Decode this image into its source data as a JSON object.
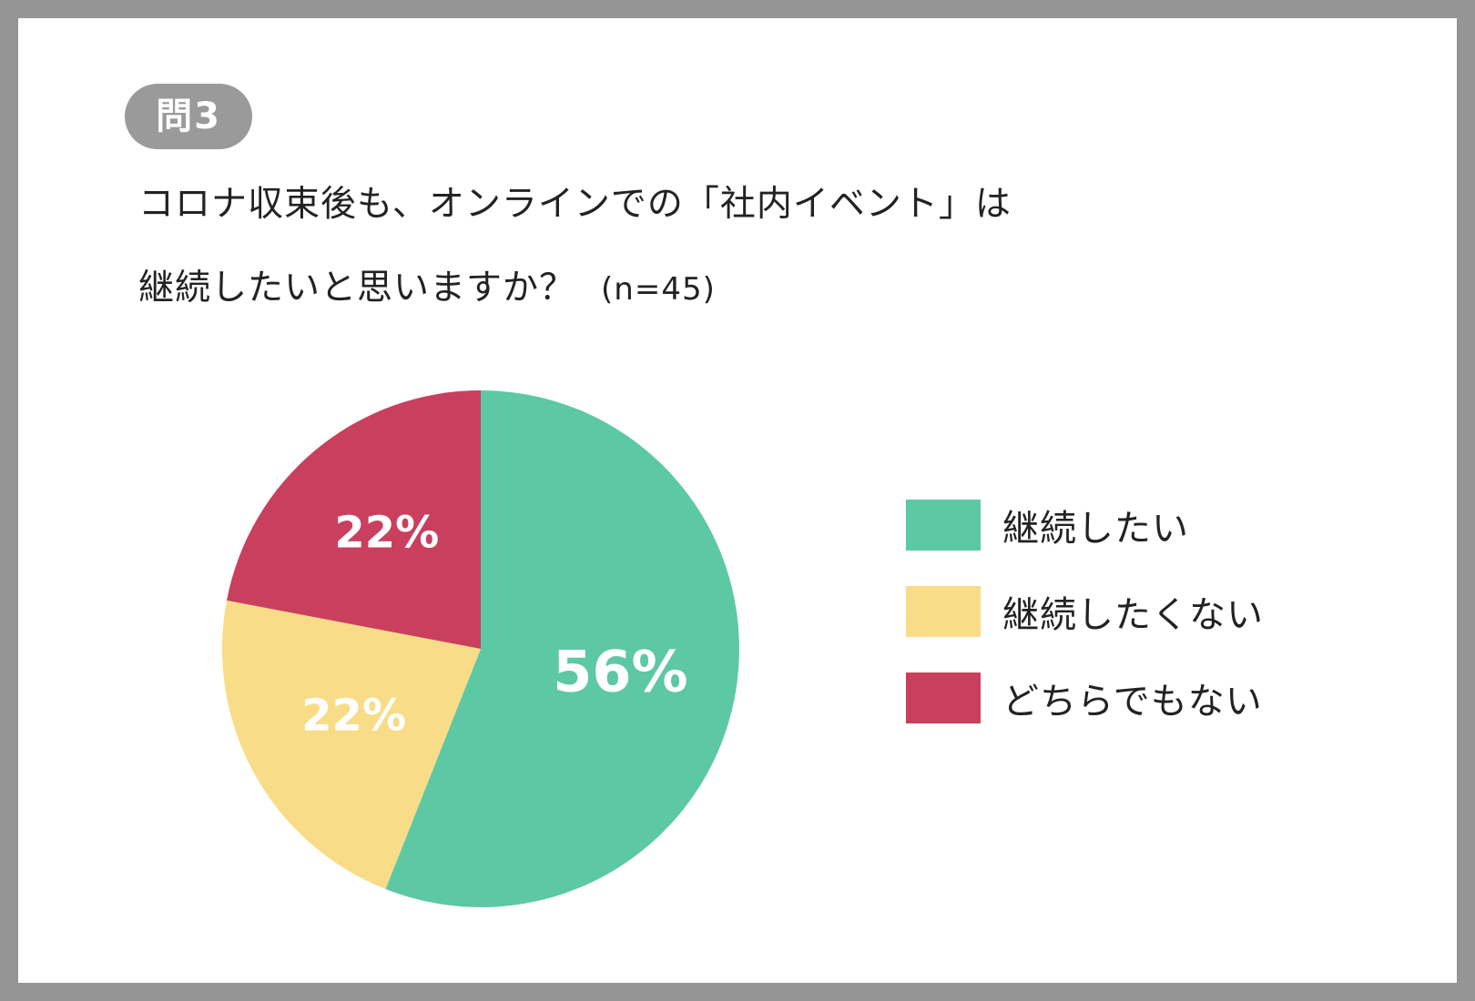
{
  "badge": "問3",
  "question": {
    "line1": "コロナ収束後も、オンラインでの「社内イベント」は",
    "line2": "継続したいと思いますか？",
    "sample": "(n=45)"
  },
  "chart_data": {
    "type": "pie",
    "slices": [
      {
        "label": "継続したい",
        "value": 56,
        "display": "56%",
        "color": "#5dc8a4"
      },
      {
        "label": "継続したくない",
        "value": 22,
        "display": "22%",
        "color": "#f9dc87"
      },
      {
        "label": "どちらでもない",
        "value": 22,
        "display": "22%",
        "color": "#c9405e"
      }
    ],
    "start": "12 o'clock",
    "direction": "clockwise",
    "legend_position": "right"
  }
}
